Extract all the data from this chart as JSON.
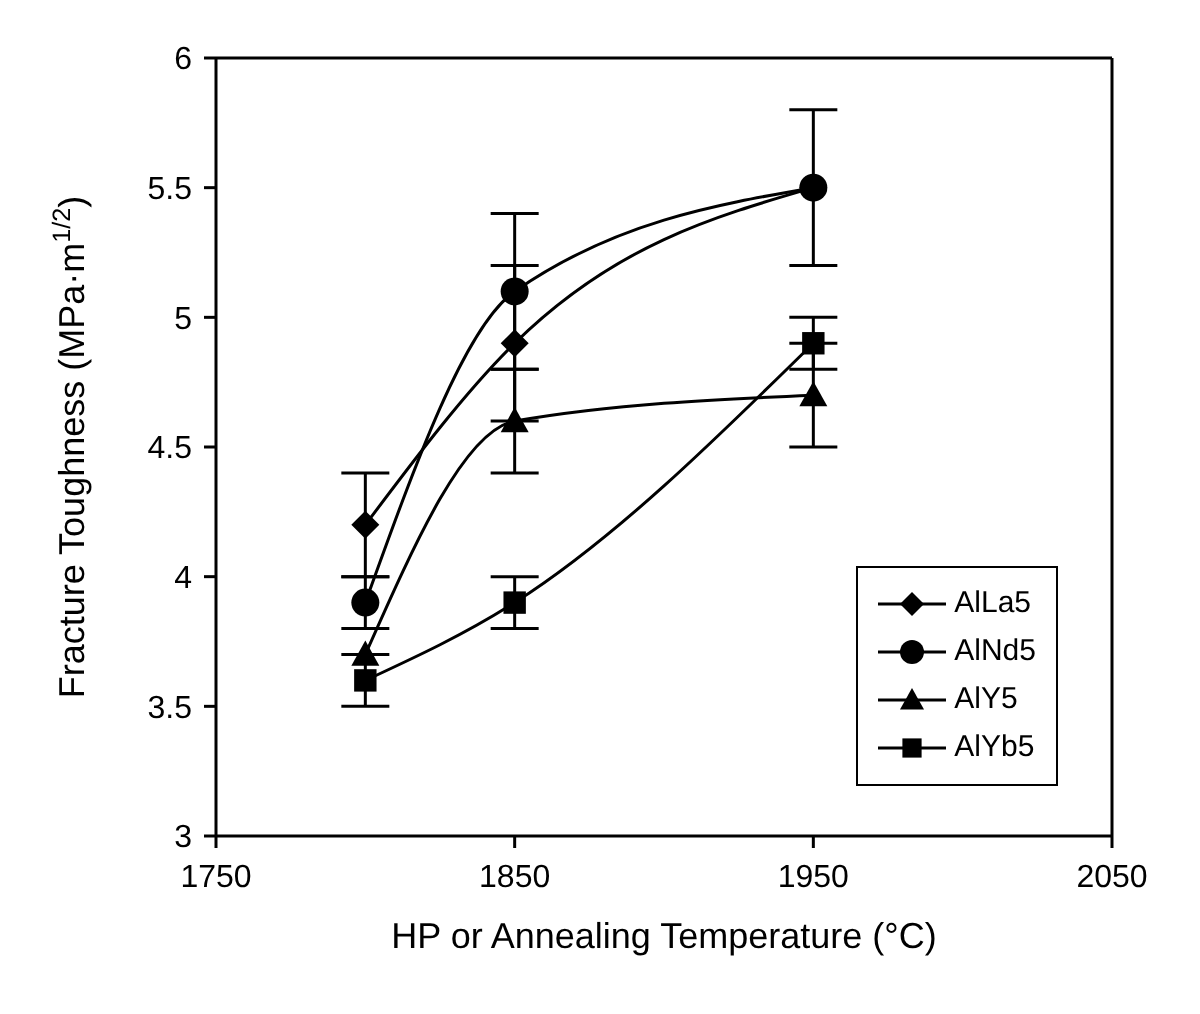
{
  "chart_data": {
    "type": "line",
    "xlabel": "HP or Annealing Temperature (°C)",
    "ylabel": "Fracture Toughness (MPa·m$^{1/2}$)",
    "x": [
      1800,
      1850,
      1950
    ],
    "xlim": [
      1750,
      2050
    ],
    "xticks": [
      1750,
      1850,
      1950,
      2050
    ],
    "ylim": [
      3,
      6
    ],
    "yticks": [
      3,
      3.5,
      4,
      4.5,
      5,
      5.5,
      6
    ],
    "grid": false,
    "legend": "bottom right",
    "line_style": "solid",
    "series": [
      {
        "name": "AlLa5",
        "color": "#000000",
        "marker": "diamond",
        "values": [
          4.2,
          4.9,
          5.5
        ],
        "errors": [
          0.2,
          0.3,
          null
        ]
      },
      {
        "name": "AlNd5",
        "color": "#000000",
        "marker": "circle",
        "values": [
          3.9,
          5.1,
          5.5
        ],
        "errors": [
          0.1,
          0.3,
          0.3
        ]
      },
      {
        "name": "AlY5",
        "color": "#000000",
        "marker": "triangle",
        "values": [
          3.7,
          4.6,
          4.7
        ],
        "errors": [
          null,
          0.2,
          0.2
        ]
      },
      {
        "name": "AlYb5",
        "color": "#000000",
        "marker": "square",
        "values": [
          3.6,
          3.9,
          4.9
        ],
        "errors": [
          0.1,
          0.1,
          0.1
        ]
      }
    ]
  }
}
